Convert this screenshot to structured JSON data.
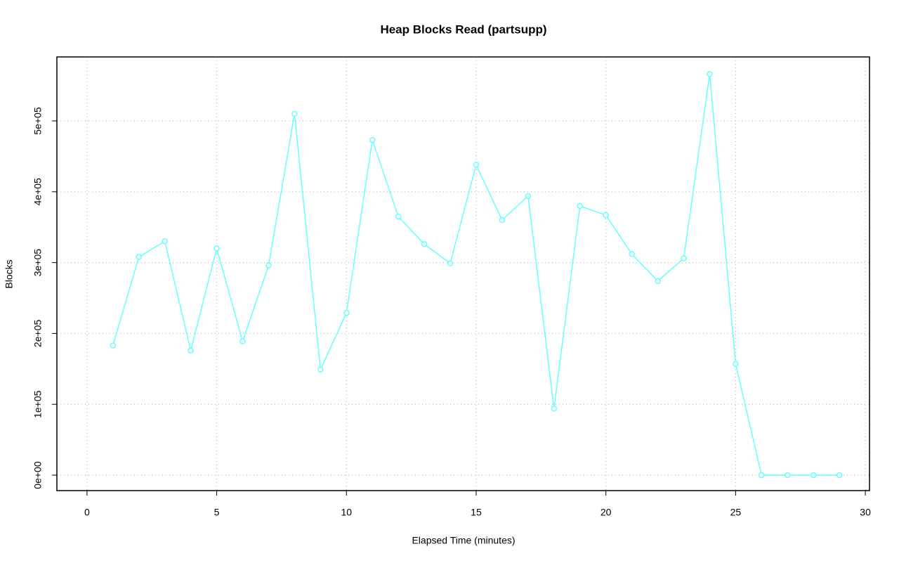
{
  "chart_data": {
    "type": "line",
    "title": "Heap Blocks Read (partsupp)",
    "x_label": "Elapsed Time (minutes)",
    "y_label": "Blocks",
    "x": [
      1,
      2,
      3,
      4,
      5,
      6,
      7,
      8,
      9,
      10,
      11,
      12,
      13,
      14,
      15,
      16,
      17,
      18,
      19,
      20,
      21,
      22,
      23,
      24,
      25,
      26,
      27,
      28,
      29
    ],
    "values": [
      183000,
      308000,
      330000,
      176000,
      320000,
      189000,
      296000,
      510000,
      149000,
      229000,
      473000,
      365000,
      326000,
      299000,
      438000,
      360000,
      394000,
      94000,
      380000,
      367000,
      312000,
      274000,
      306000,
      566000,
      157000,
      0,
      0,
      0,
      0
    ],
    "color": "#66ffff",
    "xlim": [
      -1.16,
      30.16
    ],
    "xticks": [
      0,
      5,
      10,
      15,
      20,
      25,
      30
    ],
    "ylim": [
      -21800,
      590300
    ],
    "yticks": [
      {
        "value": 0,
        "label": "0e+00"
      },
      {
        "value": 100000,
        "label": "1e+05"
      },
      {
        "value": 200000,
        "label": "2e+05"
      },
      {
        "value": 300000,
        "label": "3e+05"
      },
      {
        "value": 400000,
        "label": "4e+05"
      },
      {
        "value": 500000,
        "label": "5e+05"
      }
    ],
    "grid": true
  }
}
